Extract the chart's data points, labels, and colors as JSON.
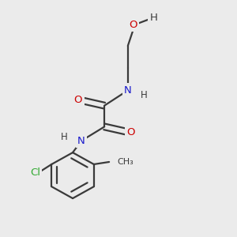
{
  "background_color": "#ebebeb",
  "bond_color": "#3a3a3a",
  "atom_colors": {
    "O": "#cc0000",
    "N": "#1a1acc",
    "Cl": "#33aa33",
    "C": "#3a3a3a",
    "H": "#3a3a3a"
  },
  "figsize": [
    3.0,
    3.0
  ],
  "dpi": 100,
  "lw": 1.6,
  "fontsize": 9.5
}
